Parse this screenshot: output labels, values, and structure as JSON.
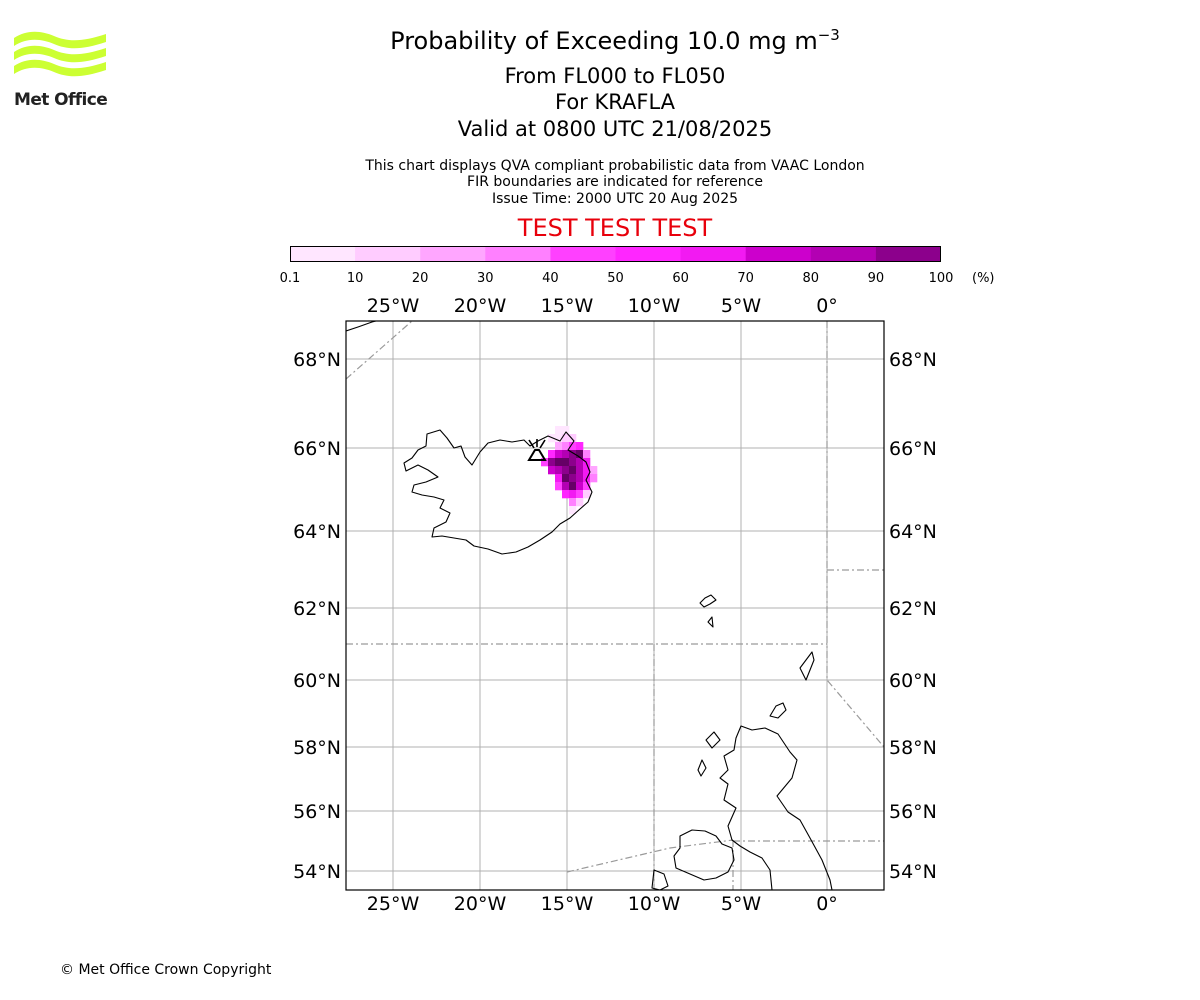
{
  "header": {
    "title_main": "Probability of Exceeding 10.0 mg m",
    "title_sup": "−3",
    "line_levels": "From FL000 to FL050",
    "line_volcano": "For KRAFLA",
    "line_valid": "Valid at 0800 UTC 21/08/2025",
    "note_1": "This chart displays QVA compliant probabilistic data from VAAC London",
    "note_2": "FIR boundaries are indicated for reference",
    "note_3": "Issue Time: 2000 UTC 20 Aug 2025",
    "test_banner": "TEST TEST TEST",
    "test_color": "#e8000b"
  },
  "logo": {
    "text": "Met Office",
    "icon": "met-office-wave-logo",
    "color": "#ccff33"
  },
  "colorbar": {
    "ticks": [
      "0.1",
      "10",
      "20",
      "30",
      "40",
      "50",
      "60",
      "70",
      "80",
      "90",
      "100"
    ],
    "unit": "(%)",
    "colors": [
      "#ffe6ff",
      "#ffccff",
      "#ffa6ff",
      "#ff80ff",
      "#ff40ff",
      "#ff26ff",
      "#f21af2",
      "#cc00cc",
      "#b300b3",
      "#8c008c",
      "#660066"
    ]
  },
  "map": {
    "lon_labels": [
      "25°W",
      "20°W",
      "15°W",
      "10°W",
      "5°W",
      "0°"
    ],
    "lat_labels": [
      "68°N",
      "66°N",
      "64°N",
      "62°N",
      "60°N",
      "58°N",
      "56°N",
      "54°N"
    ],
    "volcano": "KRAFLA",
    "volcano_icon": "volcano-marker-icon"
  },
  "footer": {
    "copyright": "© Met Office Crown Copyright"
  }
}
